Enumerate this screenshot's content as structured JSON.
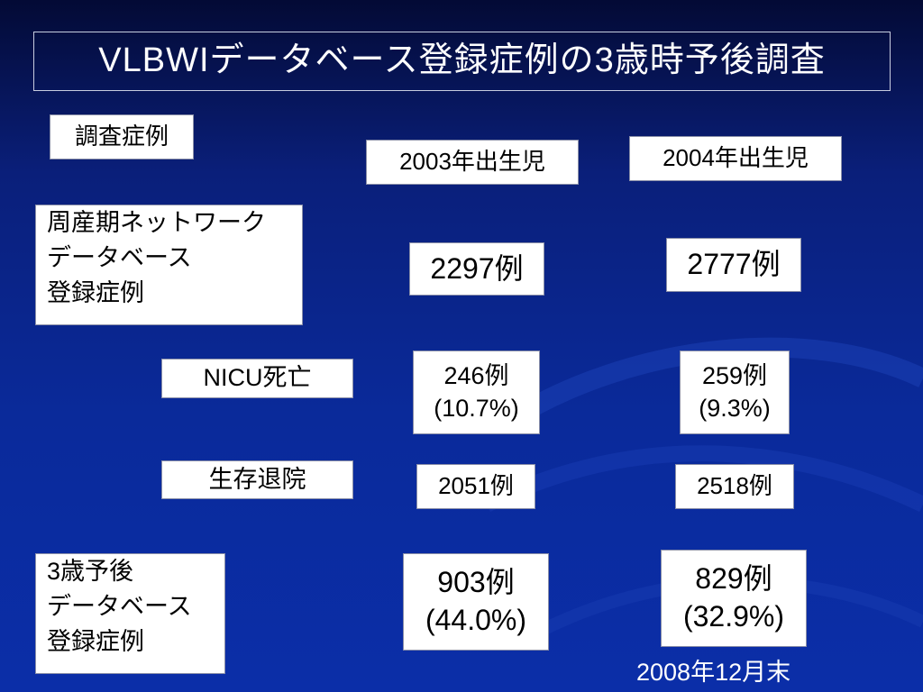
{
  "slide": {
    "title": "VLBWIデータベース登録症例の3歳時予後調査",
    "study_cases_label": "調査症例",
    "col_2003": "2003年出生児",
    "col_2004": "2004年出生児",
    "rows": {
      "registered": {
        "label_lines": [
          "周産期ネットワーク",
          "データベース",
          "登録症例"
        ],
        "v2003": "2297例",
        "v2004": "2777例"
      },
      "nicu_death": {
        "label": "NICU死亡",
        "v2003": [
          "246例",
          "(10.7%)"
        ],
        "v2004": [
          "259例",
          "(9.3%)"
        ]
      },
      "survival": {
        "label": "生存退院",
        "v2003": "2051例",
        "v2004": "2518例"
      },
      "prognosis": {
        "label_lines": [
          "3歳予後",
          "データベース",
          "登録症例"
        ],
        "v2003": [
          "903例",
          "(44.0%)"
        ],
        "v2004": [
          "829例",
          "(32.9%)"
        ]
      }
    },
    "footnote": "2008年12月末"
  },
  "colors": {
    "background_top": "#030a35",
    "background_bottom": "#0b2ea8",
    "box_fill": "#ffffff",
    "text_light": "#ffffff",
    "text_dark": "#000000"
  }
}
